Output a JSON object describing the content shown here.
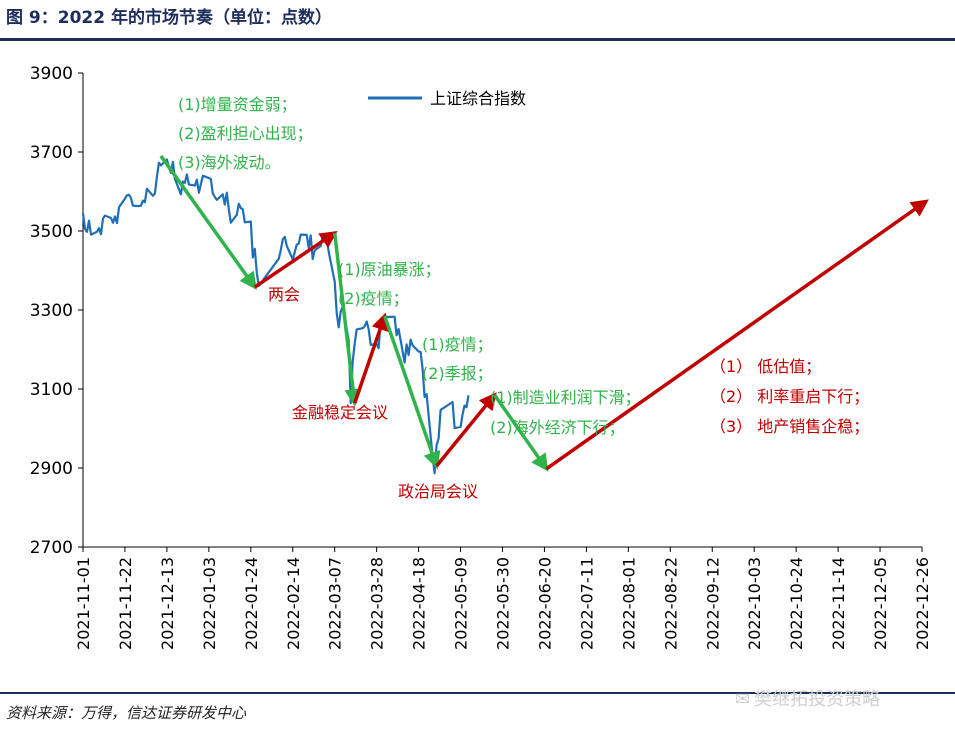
{
  "header": {
    "title": "图 9：2022 年的市场节奏（单位：点数）"
  },
  "footer": {
    "source": "资料来源：万得，信达证券研发中心",
    "watermark": "樊继拓投资策略"
  },
  "colors": {
    "line": "#1f6fb8",
    "green": "#2fb34a",
    "red": "#c00000",
    "green_text": "#2fb34a",
    "red_text": "#c00000",
    "rule": "#1f2d5c"
  },
  "annotations": {
    "green1": [
      "(1)增量资金弱；",
      "(2)盈利担心出现；",
      "(3)海外波动。"
    ],
    "red1": "两会",
    "green2": [
      "(1)原油暴涨；",
      "(2)疫情；"
    ],
    "red2": "金融稳定会议",
    "green3": [
      "(1)疫情；",
      "(2)季报；"
    ],
    "red3": "政治局会议",
    "green4": [
      "(1)制造业利润下滑；",
      "(2)海外经济下行；"
    ],
    "red4": [
      "（1） 低估值；",
      "（2） 利率重启下行；",
      "（3） 地产销售企稳；"
    ]
  },
  "chart_data": {
    "type": "line",
    "ylim": [
      2700,
      3900
    ],
    "yticks": [
      2700,
      2900,
      3100,
      3300,
      3500,
      3700,
      3900
    ],
    "xlim": [
      "2021-11-01",
      "2022-12-26"
    ],
    "xticks": [
      "2021-11-01",
      "2021-11-22",
      "2021-12-13",
      "2022-01-03",
      "2022-01-24",
      "2022-02-14",
      "2022-03-07",
      "2022-03-28",
      "2022-04-18",
      "2022-05-09",
      "2022-05-30",
      "2022-06-20",
      "2022-07-11",
      "2022-08-01",
      "2022-08-22",
      "2022-09-12",
      "2022-10-03",
      "2022-10-24",
      "2022-11-14",
      "2022-12-05",
      "2022-12-26"
    ],
    "legend": "上证综合指数",
    "legend_position": "top-center",
    "series": [
      {
        "name": "上证综合指数",
        "points": [
          [
            "2021-11-01",
            3545
          ],
          [
            "2021-11-02",
            3505
          ],
          [
            "2021-11-03",
            3498
          ],
          [
            "2021-11-04",
            3526
          ],
          [
            "2021-11-05",
            3491
          ],
          [
            "2021-11-08",
            3498
          ],
          [
            "2021-11-09",
            3507
          ],
          [
            "2021-11-10",
            3492
          ],
          [
            "2021-11-11",
            3532
          ],
          [
            "2021-11-12",
            3539
          ],
          [
            "2021-11-15",
            3533
          ],
          [
            "2021-11-16",
            3521
          ],
          [
            "2021-11-17",
            3537
          ],
          [
            "2021-11-18",
            3520
          ],
          [
            "2021-11-19",
            3560
          ],
          [
            "2021-11-22",
            3582
          ],
          [
            "2021-11-23",
            3590
          ],
          [
            "2021-11-24",
            3592
          ],
          [
            "2021-11-25",
            3584
          ],
          [
            "2021-11-26",
            3564
          ],
          [
            "2021-11-29",
            3563
          ],
          [
            "2021-11-30",
            3564
          ],
          [
            "2021-12-01",
            3577
          ],
          [
            "2021-12-02",
            3573
          ],
          [
            "2021-12-03",
            3607
          ],
          [
            "2021-12-06",
            3589
          ],
          [
            "2021-12-07",
            3595
          ],
          [
            "2021-12-08",
            3637
          ],
          [
            "2021-12-09",
            3673
          ],
          [
            "2021-12-10",
            3666
          ],
          [
            "2021-12-13",
            3681
          ],
          [
            "2021-12-14",
            3662
          ],
          [
            "2021-12-15",
            3647
          ],
          [
            "2021-12-16",
            3675
          ],
          [
            "2021-12-17",
            3632
          ],
          [
            "2021-12-20",
            3593
          ],
          [
            "2021-12-21",
            3625
          ],
          [
            "2021-12-22",
            3622
          ],
          [
            "2021-12-23",
            3643
          ],
          [
            "2021-12-24",
            3618
          ],
          [
            "2021-12-27",
            3615
          ],
          [
            "2021-12-28",
            3630
          ],
          [
            "2021-12-29",
            3597
          ],
          [
            "2021-12-30",
            3619
          ],
          [
            "2021-12-31",
            3640
          ],
          [
            "2022-01-04",
            3632
          ],
          [
            "2022-01-05",
            3595
          ],
          [
            "2022-01-06",
            3586
          ],
          [
            "2022-01-07",
            3579
          ],
          [
            "2022-01-10",
            3593
          ],
          [
            "2022-01-11",
            3567
          ],
          [
            "2022-01-12",
            3597
          ],
          [
            "2022-01-13",
            3555
          ],
          [
            "2022-01-14",
            3521
          ],
          [
            "2022-01-17",
            3541
          ],
          [
            "2022-01-18",
            3569
          ],
          [
            "2022-01-19",
            3558
          ],
          [
            "2022-01-20",
            3555
          ],
          [
            "2022-01-21",
            3522
          ],
          [
            "2022-01-24",
            3524
          ],
          [
            "2022-01-25",
            3433
          ],
          [
            "2022-01-26",
            3455
          ],
          [
            "2022-01-27",
            3394
          ],
          [
            "2022-01-28",
            3361
          ],
          [
            "2022-02-07",
            3430
          ],
          [
            "2022-02-08",
            3452
          ],
          [
            "2022-02-09",
            3479
          ],
          [
            "2022-02-10",
            3485
          ],
          [
            "2022-02-11",
            3462
          ],
          [
            "2022-02-14",
            3428
          ],
          [
            "2022-02-15",
            3446
          ],
          [
            "2022-02-16",
            3465
          ],
          [
            "2022-02-17",
            3468
          ],
          [
            "2022-02-18",
            3491
          ],
          [
            "2022-02-21",
            3490
          ],
          [
            "2022-02-22",
            3457
          ],
          [
            "2022-02-23",
            3489
          ],
          [
            "2022-02-24",
            3429
          ],
          [
            "2022-02-25",
            3451
          ],
          [
            "2022-02-28",
            3462
          ],
          [
            "2022-03-01",
            3488
          ],
          [
            "2022-03-02",
            3484
          ],
          [
            "2022-03-03",
            3481
          ],
          [
            "2022-03-04",
            3447
          ],
          [
            "2022-03-07",
            3372
          ],
          [
            "2022-03-08",
            3293
          ],
          [
            "2022-03-09",
            3256
          ],
          [
            "2022-03-10",
            3296
          ],
          [
            "2022-03-11",
            3309
          ],
          [
            "2022-03-14",
            3223
          ],
          [
            "2022-03-15",
            3064
          ],
          [
            "2022-03-16",
            3170
          ],
          [
            "2022-03-17",
            3215
          ],
          [
            "2022-03-18",
            3251
          ],
          [
            "2022-03-21",
            3254
          ],
          [
            "2022-03-22",
            3259
          ],
          [
            "2022-03-23",
            3271
          ],
          [
            "2022-03-24",
            3251
          ],
          [
            "2022-03-25",
            3212
          ],
          [
            "2022-03-28",
            3214
          ],
          [
            "2022-03-29",
            3203
          ],
          [
            "2022-03-30",
            3267
          ],
          [
            "2022-03-31",
            3252
          ],
          [
            "2022-04-01",
            3282
          ],
          [
            "2022-04-06",
            3283
          ],
          [
            "2022-04-07",
            3236
          ],
          [
            "2022-04-08",
            3252
          ],
          [
            "2022-04-11",
            3167
          ],
          [
            "2022-04-12",
            3213
          ],
          [
            "2022-04-13",
            3186
          ],
          [
            "2022-04-14",
            3225
          ],
          [
            "2022-04-15",
            3211
          ],
          [
            "2022-04-18",
            3195
          ],
          [
            "2022-04-19",
            3194
          ],
          [
            "2022-04-20",
            3151
          ],
          [
            "2022-04-21",
            3080
          ],
          [
            "2022-04-22",
            3087
          ],
          [
            "2022-04-25",
            2928
          ],
          [
            "2022-04-26",
            2887
          ],
          [
            "2022-04-27",
            2958
          ],
          [
            "2022-04-28",
            2975
          ],
          [
            "2022-04-29",
            3047
          ],
          [
            "2022-05-05",
            3067
          ],
          [
            "2022-05-06",
            3001
          ],
          [
            "2022-05-09",
            3004
          ],
          [
            "2022-05-10",
            3035
          ],
          [
            "2022-05-11",
            3058
          ],
          [
            "2022-05-12",
            3054
          ],
          [
            "2022-05-13",
            3084
          ]
        ]
      }
    ],
    "arrows": [
      {
        "color": "green",
        "from": [
          "2021-12-10",
          3690
        ],
        "to": [
          "2022-01-26",
          3358
        ]
      },
      {
        "color": "red",
        "from": [
          "2022-01-26",
          3358
        ],
        "to": [
          "2022-03-07",
          3495
        ]
      },
      {
        "color": "green",
        "from": [
          "2022-03-07",
          3495
        ],
        "to": [
          "2022-03-17",
          3064
        ]
      },
      {
        "color": "red",
        "from": [
          "2022-03-17",
          3064
        ],
        "to": [
          "2022-04-01",
          3285
        ]
      },
      {
        "color": "green",
        "from": [
          "2022-04-01",
          3285
        ],
        "to": [
          "2022-04-27",
          2905
        ]
      },
      {
        "color": "red",
        "from": [
          "2022-04-27",
          2905
        ],
        "to": [
          "2022-05-26",
          3085
        ]
      },
      {
        "color": "green",
        "from": [
          "2022-05-26",
          3085
        ],
        "to": [
          "2022-06-21",
          2898
        ]
      },
      {
        "color": "red",
        "from": [
          "2022-06-21",
          2898
        ],
        "to": [
          "2022-12-28",
          3575
        ]
      }
    ]
  }
}
